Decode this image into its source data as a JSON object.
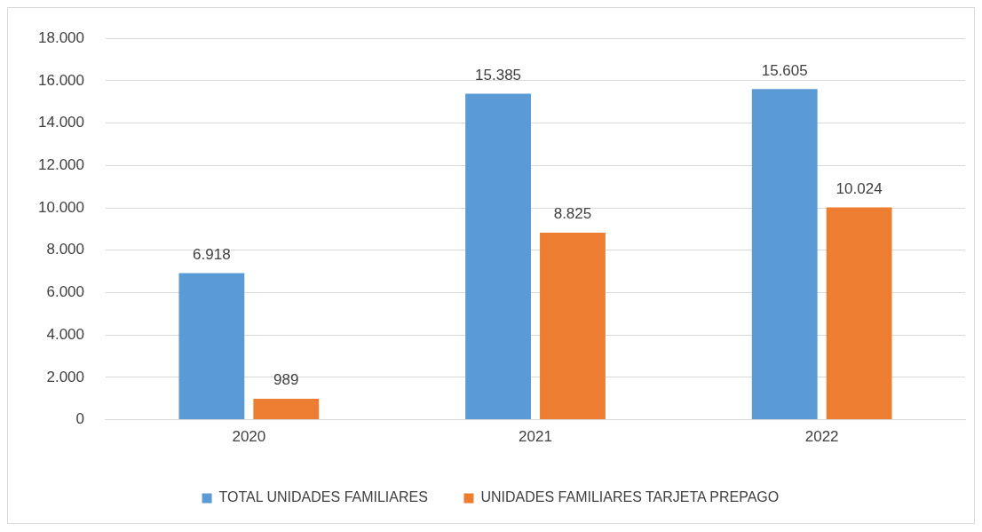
{
  "chart_data": {
    "type": "bar",
    "categories": [
      "2020",
      "2021",
      "2022"
    ],
    "series": [
      {
        "name": "TOTAL UNIDADES FAMILIARES",
        "color": "#5b9bd5",
        "values": [
          6918,
          15385,
          15605
        ],
        "value_labels": [
          "6.918",
          "15.385",
          "15.605"
        ]
      },
      {
        "name": "UNIDADES FAMILIARES TARJETA PREPAGO",
        "color": "#ed7d31",
        "values": [
          989,
          8825,
          10024
        ],
        "value_labels": [
          "989",
          "8.825",
          "10.024"
        ]
      }
    ],
    "ylim": [
      0,
      18000
    ],
    "yticks": [
      {
        "value": 0,
        "label": "0"
      },
      {
        "value": 2000,
        "label": "2.000"
      },
      {
        "value": 4000,
        "label": "4.000"
      },
      {
        "value": 6000,
        "label": "6.000"
      },
      {
        "value": 8000,
        "label": "8.000"
      },
      {
        "value": 10000,
        "label": "10.000"
      },
      {
        "value": 12000,
        "label": "12.000"
      },
      {
        "value": 14000,
        "label": "14.000"
      },
      {
        "value": 16000,
        "label": "16.000"
      },
      {
        "value": 18000,
        "label": "18.000"
      }
    ],
    "grid": "y",
    "legend": "bottom"
  }
}
